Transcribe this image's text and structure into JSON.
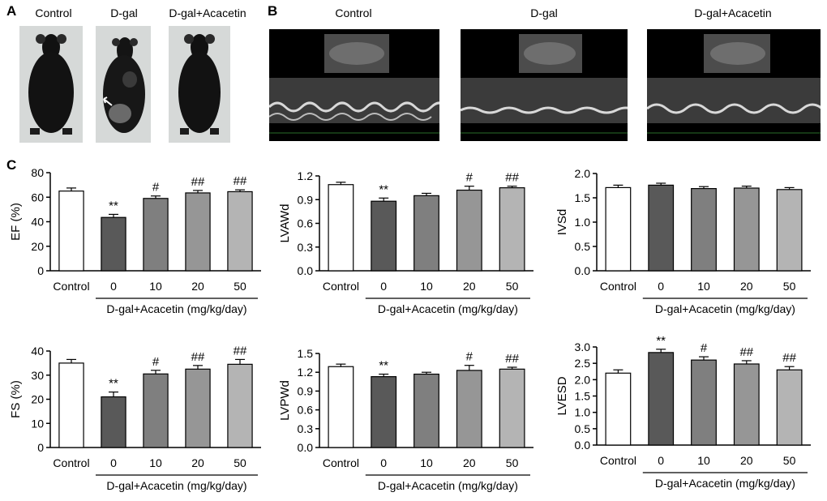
{
  "panels": {
    "a": "A",
    "b": "B",
    "c": "C"
  },
  "panel_a": {
    "labels": [
      "Control",
      "D-gal",
      "D-gal+Acacetin"
    ]
  },
  "panel_b": {
    "labels": [
      "Control",
      "D-gal",
      "D-gal+Acacetin"
    ]
  },
  "chart_data": [
    {
      "type": "bar",
      "ylabel": "EF (%)",
      "ylim": [
        0,
        80
      ],
      "yticks": [
        0,
        20,
        40,
        60,
        80
      ],
      "categories": [
        "Control",
        "0",
        "10",
        "20",
        "50"
      ],
      "values": [
        65,
        43.5,
        59,
        63.5,
        64.5
      ],
      "errors": [
        2.5,
        2.5,
        2,
        2,
        1.5
      ],
      "annotations": [
        "",
        "**",
        "#",
        "##",
        "##"
      ],
      "group_label": "D-gal+Acacetin (mg/kg/day)",
      "colors": [
        "#ffffff",
        "#595959",
        "#7f7f7f",
        "#969696",
        "#b4b4b4"
      ]
    },
    {
      "type": "bar",
      "ylabel": "LVAWd",
      "ylim": [
        0,
        1.2
      ],
      "yticks": [
        "0.0",
        "0.3",
        "0.6",
        "0.9",
        "1.2"
      ],
      "categories": [
        "Control",
        "0",
        "10",
        "20",
        "50"
      ],
      "values": [
        1.09,
        0.88,
        0.95,
        1.02,
        1.05
      ],
      "errors": [
        0.03,
        0.04,
        0.03,
        0.05,
        0.02
      ],
      "annotations": [
        "",
        "**",
        "",
        "#",
        "##"
      ],
      "group_label": "D-gal+Acacetin (mg/kg/day)",
      "colors": [
        "#ffffff",
        "#595959",
        "#7f7f7f",
        "#969696",
        "#b4b4b4"
      ]
    },
    {
      "type": "bar",
      "ylabel": "IVSd",
      "ylim": [
        0,
        2.0
      ],
      "yticks": [
        "0.0",
        "0.5",
        "1.0",
        "1.5",
        "2.0"
      ],
      "categories": [
        "Control",
        "0",
        "10",
        "20",
        "50"
      ],
      "values": [
        1.71,
        1.76,
        1.69,
        1.7,
        1.67
      ],
      "errors": [
        0.05,
        0.04,
        0.04,
        0.04,
        0.04
      ],
      "annotations": [
        "",
        "",
        "",
        "",
        ""
      ],
      "group_label": "D-gal+Acacetin (mg/kg/day)",
      "colors": [
        "#ffffff",
        "#595959",
        "#7f7f7f",
        "#969696",
        "#b4b4b4"
      ]
    },
    {
      "type": "bar",
      "ylabel": "FS (%)",
      "ylim": [
        0,
        40
      ],
      "yticks": [
        0,
        10,
        20,
        30,
        40
      ],
      "categories": [
        "Control",
        "0",
        "10",
        "20",
        "50"
      ],
      "values": [
        35,
        21,
        30.5,
        32.5,
        34.5
      ],
      "errors": [
        1.5,
        2,
        1.5,
        1.5,
        2
      ],
      "annotations": [
        "",
        "**",
        "#",
        "##",
        "##"
      ],
      "group_label": "D-gal+Acacetin (mg/kg/day)",
      "colors": [
        "#ffffff",
        "#595959",
        "#7f7f7f",
        "#969696",
        "#b4b4b4"
      ]
    },
    {
      "type": "bar",
      "ylabel": "LVPWd",
      "ylim": [
        0,
        1.5
      ],
      "yticks": [
        "0.0",
        "0.3",
        "0.6",
        "0.9",
        "1.2",
        "1.5"
      ],
      "categories": [
        "Control",
        "0",
        "10",
        "20",
        "50"
      ],
      "values": [
        1.29,
        1.13,
        1.17,
        1.23,
        1.25
      ],
      "errors": [
        0.04,
        0.04,
        0.03,
        0.08,
        0.03
      ],
      "annotations": [
        "",
        "**",
        "",
        "#",
        "##"
      ],
      "group_label": "D-gal+Acacetin (mg/kg/day)",
      "colors": [
        "#ffffff",
        "#595959",
        "#7f7f7f",
        "#969696",
        "#b4b4b4"
      ]
    },
    {
      "type": "bar",
      "ylabel": "LVESD",
      "ylim": [
        0,
        3.0
      ],
      "yticks": [
        "0.0",
        "0.5",
        "1.0",
        "1.5",
        "2.0",
        "2.5",
        "3.0"
      ],
      "categories": [
        "Control",
        "0",
        "10",
        "20",
        "50"
      ],
      "values": [
        2.2,
        2.83,
        2.6,
        2.48,
        2.3
      ],
      "errors": [
        0.1,
        0.1,
        0.1,
        0.1,
        0.1
      ],
      "annotations": [
        "",
        "**",
        "#",
        "##",
        "##"
      ],
      "group_label": "D-gal+Acacetin (mg/kg/day)",
      "colors": [
        "#ffffff",
        "#595959",
        "#7f7f7f",
        "#969696",
        "#b4b4b4"
      ]
    }
  ]
}
